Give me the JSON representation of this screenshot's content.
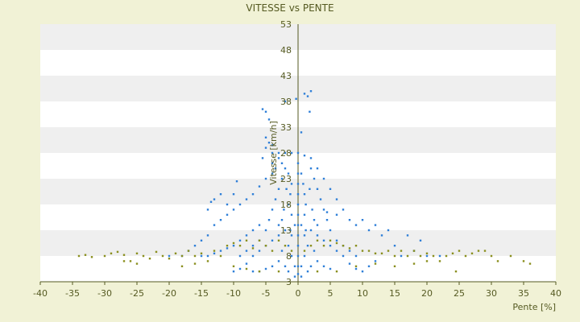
{
  "chart_data": {
    "type": "scatter",
    "title": "VITESSE vs PENTE",
    "xlabel": "Pente [%]",
    "ylabel": "Vitesse [km/h]",
    "xlim": [
      -40,
      40
    ],
    "ylim": [
      3,
      53
    ],
    "xticks": [
      -40,
      -35,
      -30,
      -25,
      -20,
      -15,
      -10,
      -5,
      0,
      5,
      10,
      15,
      20,
      25,
      30,
      35,
      40
    ],
    "yticks": [
      3,
      8,
      13,
      18,
      23,
      28,
      33,
      38,
      43,
      48,
      53
    ],
    "grid": "horizontal alternating bands",
    "legend": "none",
    "colors": {
      "background": "#f1f2d6",
      "plot_band_light": "#ffffff",
      "plot_band_dark": "#efefef",
      "series_blue": "#2f7fd8",
      "series_olive": "#8a8f1e",
      "text": "#555a22"
    },
    "series": [
      {
        "color": "#2f7fd8",
        "points": [
          [
            -5.5,
            36.5
          ],
          [
            -5,
            36
          ],
          [
            -4.5,
            34.5
          ],
          [
            -5,
            31
          ],
          [
            -4.5,
            30
          ],
          [
            -4,
            29.5
          ],
          [
            -5,
            29
          ],
          [
            -4,
            28
          ],
          [
            -5.5,
            27
          ],
          [
            -4,
            26
          ],
          [
            -2,
            38
          ],
          [
            -0.3,
            38.5
          ],
          [
            0.5,
            32
          ],
          [
            1,
            39.5
          ],
          [
            1.5,
            39
          ],
          [
            2,
            40
          ],
          [
            1.8,
            36
          ],
          [
            -3,
            28
          ],
          [
            -2,
            28
          ],
          [
            -1,
            28
          ],
          [
            0,
            28
          ],
          [
            1,
            27.5
          ],
          [
            2,
            27
          ],
          [
            3,
            25
          ],
          [
            4,
            23
          ],
          [
            5,
            21
          ],
          [
            6,
            19
          ],
          [
            7,
            17
          ],
          [
            -3,
            27
          ],
          [
            -2.5,
            26
          ],
          [
            -3.5,
            25
          ],
          [
            -4,
            24
          ],
          [
            -5,
            23
          ],
          [
            -6,
            21.5
          ],
          [
            -7,
            20
          ],
          [
            -8,
            19
          ],
          [
            -9,
            18
          ],
          [
            -10,
            17
          ],
          [
            -11,
            16
          ],
          [
            -12,
            15
          ],
          [
            -13,
            14
          ],
          [
            -9.5,
            22.5
          ],
          [
            -12,
            20
          ],
          [
            -13,
            19
          ],
          [
            -13.5,
            18.5
          ],
          [
            -14,
            17
          ],
          [
            -10,
            20
          ],
          [
            -11,
            18
          ],
          [
            -1.5,
            24
          ],
          [
            -1,
            22
          ],
          [
            -1.2,
            20
          ],
          [
            -1.5,
            18
          ],
          [
            -1,
            16
          ],
          [
            -0.5,
            14
          ],
          [
            -1,
            12
          ],
          [
            -1.5,
            10
          ],
          [
            -1,
            8
          ],
          [
            -0.5,
            6
          ],
          [
            0.5,
            24
          ],
          [
            0.8,
            22
          ],
          [
            1,
            20
          ],
          [
            1.2,
            18
          ],
          [
            1,
            16
          ],
          [
            0.5,
            14
          ],
          [
            1,
            12
          ],
          [
            1.5,
            10
          ],
          [
            1,
            8
          ],
          [
            0.5,
            6
          ],
          [
            -2.5,
            23
          ],
          [
            -3,
            21
          ],
          [
            -3.5,
            19
          ],
          [
            -4,
            17
          ],
          [
            -4.5,
            15
          ],
          [
            -5,
            13
          ],
          [
            -6,
            11
          ],
          [
            -7,
            10
          ],
          [
            -8,
            9
          ],
          [
            -9,
            8
          ],
          [
            2.5,
            23
          ],
          [
            3,
            21
          ],
          [
            3.5,
            19
          ],
          [
            4,
            17
          ],
          [
            4.5,
            15
          ],
          [
            5,
            13
          ],
          [
            6,
            11
          ],
          [
            7,
            10
          ],
          [
            8,
            9
          ],
          [
            9,
            8
          ],
          [
            -2,
            25
          ],
          [
            -1.8,
            21
          ],
          [
            -2.2,
            17
          ],
          [
            -2,
            13
          ],
          [
            -2.5,
            9
          ],
          [
            2,
            25
          ],
          [
            1.8,
            21
          ],
          [
            2.2,
            17
          ],
          [
            2,
            13
          ],
          [
            2.5,
            9
          ],
          [
            10,
            15
          ],
          [
            12,
            14
          ],
          [
            14,
            13
          ],
          [
            13,
            12
          ],
          [
            11,
            13
          ],
          [
            9,
            14
          ],
          [
            8,
            15
          ],
          [
            6,
            16
          ],
          [
            4.5,
            16.5
          ],
          [
            -6,
            14
          ],
          [
            -7,
            13
          ],
          [
            -8,
            12
          ],
          [
            -9,
            11
          ],
          [
            -10,
            10
          ],
          [
            -11,
            9.5
          ],
          [
            -12,
            9
          ],
          [
            -13,
            8.5
          ],
          [
            -14,
            8
          ],
          [
            -15,
            8
          ],
          [
            -3,
            12
          ],
          [
            -4,
            11
          ],
          [
            -5,
            10
          ],
          [
            -6,
            9
          ],
          [
            -7,
            8
          ],
          [
            -3,
            7
          ],
          [
            -4,
            6
          ],
          [
            -5,
            5.5
          ],
          [
            3,
            12
          ],
          [
            4,
            11
          ],
          [
            5,
            10
          ],
          [
            6,
            9
          ],
          [
            7,
            8
          ],
          [
            3,
            7
          ],
          [
            4,
            6
          ],
          [
            5,
            5.5
          ],
          [
            0,
            10
          ],
          [
            0,
            12
          ],
          [
            0,
            14
          ],
          [
            0,
            16
          ],
          [
            0,
            18
          ],
          [
            0,
            20
          ],
          [
            0,
            22
          ],
          [
            0,
            24
          ],
          [
            0,
            26
          ],
          [
            0,
            8
          ],
          [
            0,
            6
          ],
          [
            0,
            4.5
          ],
          [
            -0.5,
            4
          ],
          [
            0.5,
            4
          ],
          [
            -1.5,
            5
          ],
          [
            1.5,
            5
          ],
          [
            -2,
            6
          ],
          [
            2,
            6
          ],
          [
            -8,
            6.5
          ],
          [
            -9,
            5.5
          ],
          [
            -10,
            5
          ],
          [
            -7,
            5
          ],
          [
            -6,
            5
          ],
          [
            8,
            6.5
          ],
          [
            9,
            5.5
          ],
          [
            10,
            5
          ],
          [
            11,
            6
          ],
          [
            12,
            7
          ],
          [
            16,
            8
          ],
          [
            18,
            9
          ],
          [
            20,
            8
          ],
          [
            22,
            8
          ],
          [
            15,
            10
          ],
          [
            17,
            12
          ],
          [
            19,
            11
          ],
          [
            -16,
            10
          ],
          [
            -17,
            9
          ],
          [
            -18,
            8
          ],
          [
            -20,
            8
          ],
          [
            -15,
            11
          ],
          [
            -14,
            12
          ],
          [
            -2.5,
            15
          ],
          [
            -3,
            14
          ],
          [
            2.5,
            15
          ],
          [
            3,
            14
          ],
          [
            -1.2,
            13
          ],
          [
            1.2,
            13
          ]
        ]
      },
      {
        "color": "#8a8f1e",
        "points": [
          [
            -34,
            8
          ],
          [
            -33,
            8.2
          ],
          [
            -32,
            7.8
          ],
          [
            -30,
            8
          ],
          [
            -29,
            8.5
          ],
          [
            -28,
            8.8
          ],
          [
            -27,
            8.2
          ],
          [
            -26,
            7
          ],
          [
            -25,
            8.5
          ],
          [
            -24,
            8
          ],
          [
            -23,
            7.5
          ],
          [
            -22,
            8.8
          ],
          [
            -21,
            8
          ],
          [
            -20,
            7.5
          ],
          [
            -19,
            8.5
          ],
          [
            -18,
            8
          ],
          [
            -17,
            9
          ],
          [
            -16,
            8
          ],
          [
            -15,
            8.5
          ],
          [
            -14,
            7
          ],
          [
            -13,
            9
          ],
          [
            -12,
            8
          ],
          [
            -11,
            10
          ],
          [
            -10,
            10.5
          ],
          [
            -9,
            10
          ],
          [
            -8,
            11
          ],
          [
            -7,
            9.5
          ],
          [
            -6,
            11
          ],
          [
            -5,
            10
          ],
          [
            -4,
            9
          ],
          [
            -3,
            11
          ],
          [
            -2,
            10
          ],
          [
            -1,
            9
          ],
          [
            1,
            9
          ],
          [
            2,
            10
          ],
          [
            3,
            11
          ],
          [
            4,
            10
          ],
          [
            5,
            11
          ],
          [
            6,
            10.5
          ],
          [
            7,
            10
          ],
          [
            8,
            9.5
          ],
          [
            9,
            10
          ],
          [
            10,
            9
          ],
          [
            11,
            9
          ],
          [
            12,
            8.5
          ],
          [
            13,
            8.5
          ],
          [
            14,
            9
          ],
          [
            15,
            8
          ],
          [
            16,
            9
          ],
          [
            17,
            8
          ],
          [
            18,
            9
          ],
          [
            19,
            8
          ],
          [
            20,
            8.5
          ],
          [
            21,
            8
          ],
          [
            22,
            7
          ],
          [
            23,
            8
          ],
          [
            24,
            8.5
          ],
          [
            25,
            9
          ],
          [
            26,
            8
          ],
          [
            27,
            8.5
          ],
          [
            28,
            9
          ],
          [
            29,
            9
          ],
          [
            30,
            8
          ],
          [
            31,
            7
          ],
          [
            33,
            8
          ],
          [
            35,
            7
          ],
          [
            24.5,
            5
          ],
          [
            36,
            6.5
          ],
          [
            -25,
            6.5
          ],
          [
            -27,
            7
          ],
          [
            -18,
            6
          ],
          [
            -16,
            6.5
          ],
          [
            -10,
            6
          ],
          [
            -8,
            5.5
          ],
          [
            -6,
            5
          ],
          [
            -3,
            5
          ],
          [
            3,
            5
          ],
          [
            6,
            5
          ],
          [
            9,
            6
          ],
          [
            12,
            6.5
          ],
          [
            15,
            6
          ],
          [
            18,
            6.5
          ],
          [
            20,
            7
          ]
        ]
      }
    ]
  }
}
